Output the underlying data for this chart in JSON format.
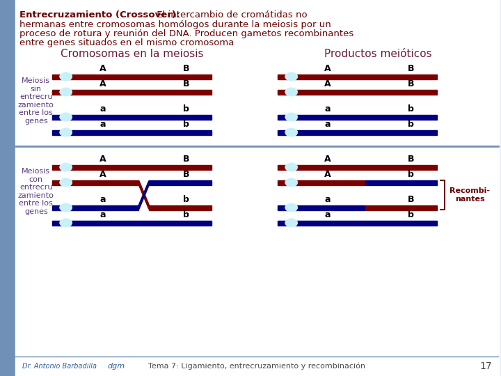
{
  "bg_color": "#e8eef4",
  "sidebar_color": "#7090b8",
  "white_panel": "#ffffff",
  "title_bold": "Entrecruzamiento (Crossover):",
  "title_line1_rest": " El intercambio de cromátidas no",
  "title_line2": "hermanas entre cromosomas homólogos durante la meiosis por un",
  "title_line3": "proceso de rotura y reunión del DNA. Producen gametos recombinantes",
  "title_line4": "entre genes situados en el mismo cromosoma",
  "title_color": "#6b0000",
  "col1_title": "Cromosomas en la meiosis",
  "col2_title": "Productos meióticos",
  "col_title_color": "#6b1a3a",
  "label1": "Meiosis\nsin\nentrecru\nzamiento\nentre los\ngenes",
  "label2": "Meiosis\ncon\nentrecru\nzamiento\nentre los\ngenes",
  "label_color": "#5a3a7a",
  "dark_red": "#7b0000",
  "dark_blue": "#000080",
  "centromere_color": "#c8f0f8",
  "footer_text": "Tema 7: Ligamiento, entrecruzamiento y recombinación",
  "footer_page": "17",
  "footer_color": "#4a4a4a",
  "recomb_color": "#6b0000",
  "separator_color": "#7090b8"
}
